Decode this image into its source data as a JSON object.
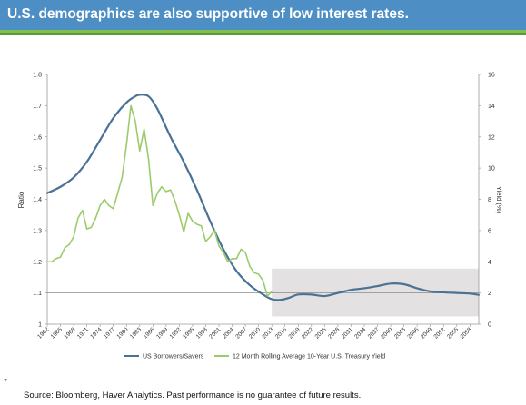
{
  "header": {
    "title": "U.S. demographics are also supportive of low interest rates."
  },
  "footer": {
    "page_number": "7",
    "source": "Source: Bloomberg, Haver Analytics. Past performance is no guarantee of future results."
  },
  "colors": {
    "header_bg": "#4d8fc4",
    "accent_green": "#7fbf4e",
    "series_blue": "#4a7196",
    "series_green": "#9ccb6c",
    "shade": "#e3e1e1"
  },
  "chart_data": {
    "type": "line",
    "title": "",
    "ylabel": "Ratio",
    "y2label": "Yield (%)",
    "ylim": [
      1,
      1.8
    ],
    "y2lim": [
      0,
      16
    ],
    "yticks": [
      "1",
      "1.1",
      "1.2",
      "1.3",
      "1.4",
      "1.5",
      "1.6",
      "1.7",
      "1.8"
    ],
    "y2ticks": [
      "0",
      "2",
      "4",
      "6",
      "8",
      "10",
      "12",
      "14",
      "16"
    ],
    "xlim": [
      1962,
      2060
    ],
    "xticks": [
      "1962",
      "1965",
      "1968",
      "1971",
      "1974",
      "1977",
      "1980",
      "1983",
      "1986",
      "1989",
      "1992",
      "1995",
      "1998",
      "2001",
      "2004",
      "2007",
      "2010",
      "2013",
      "2016",
      "2019",
      "2022",
      "2025",
      "2028",
      "2031",
      "2034",
      "2037",
      "2040",
      "2043",
      "2046",
      "2049",
      "2052",
      "2055",
      "2058"
    ],
    "shaded_region": {
      "x": [
        2013,
        2060
      ],
      "y": [
        1.025,
        1.178
      ]
    },
    "grid": "horizontal reference line at 1.1",
    "legend_position": "bottom",
    "series": [
      {
        "name": "US Borrowers/Savers",
        "axis": "left",
        "color": "#4a7196",
        "x": [
          1962,
          1965,
          1968,
          1971,
          1974,
          1977,
          1980,
          1982,
          1983,
          1985,
          1987,
          1990,
          1993,
          1996,
          1999,
          2002,
          2005,
          2008,
          2011,
          2013,
          2015,
          2017,
          2019,
          2022,
          2025,
          2028,
          2031,
          2034,
          2037,
          2040,
          2043,
          2046,
          2049,
          2052,
          2055,
          2058,
          2060
        ],
        "values": [
          1.42,
          1.44,
          1.47,
          1.52,
          1.59,
          1.66,
          1.71,
          1.73,
          1.735,
          1.73,
          1.69,
          1.6,
          1.52,
          1.43,
          1.33,
          1.24,
          1.17,
          1.125,
          1.095,
          1.08,
          1.078,
          1.085,
          1.095,
          1.095,
          1.09,
          1.1,
          1.11,
          1.115,
          1.122,
          1.13,
          1.128,
          1.115,
          1.105,
          1.102,
          1.1,
          1.098,
          1.094
        ]
      },
      {
        "name": "12 Month Rolling Average 10-Year U.S. Treasury Yield",
        "axis": "right",
        "color": "#9ccb6c",
        "x": [
          1962,
          1963,
          1964,
          1965,
          1966,
          1967,
          1968,
          1969,
          1970,
          1971,
          1972,
          1973,
          1974,
          1975,
          1976,
          1977,
          1978,
          1979,
          1980,
          1981,
          1982,
          1983,
          1984,
          1985,
          1986,
          1987,
          1988,
          1989,
          1990,
          1991,
          1992,
          1993,
          1994,
          1995,
          1996,
          1997,
          1998,
          1999,
          2000,
          2001,
          2002,
          2003,
          2004,
          2005,
          2006,
          2007,
          2008,
          2009,
          2010,
          2011,
          2012,
          2013
        ],
        "values": [
          4.0,
          4.0,
          4.2,
          4.3,
          4.9,
          5.1,
          5.6,
          6.8,
          7.3,
          6.1,
          6.2,
          6.8,
          7.6,
          8.0,
          7.6,
          7.4,
          8.4,
          9.4,
          11.5,
          14.0,
          13.0,
          11.1,
          12.5,
          10.6,
          7.6,
          8.4,
          8.8,
          8.5,
          8.6,
          7.9,
          7.0,
          5.9,
          7.1,
          6.6,
          6.4,
          6.3,
          5.3,
          5.6,
          6.0,
          5.0,
          4.6,
          4.0,
          4.2,
          4.2,
          4.8,
          4.6,
          3.7,
          3.3,
          3.2,
          2.8,
          1.8,
          2.1
        ]
      }
    ]
  }
}
